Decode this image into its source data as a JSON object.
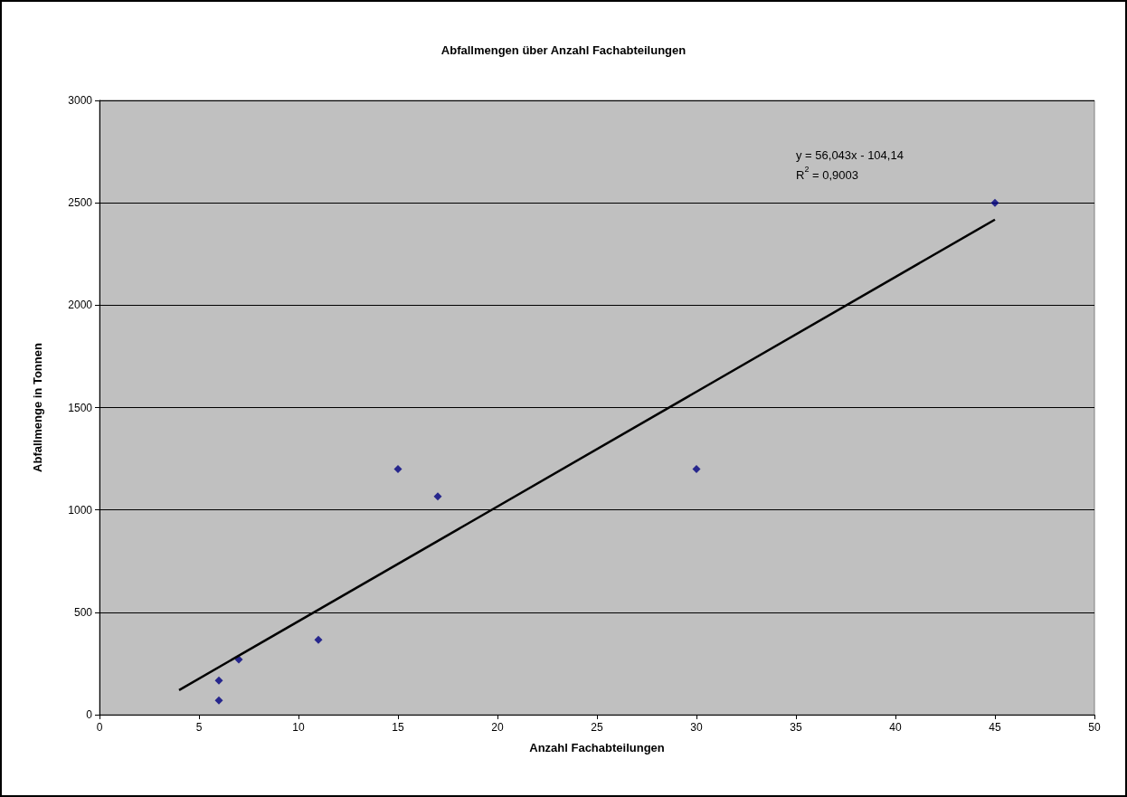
{
  "chart_data": {
    "type": "scatter",
    "title": "Abfallmengen über Anzahl Fachabteilungen",
    "xlabel": "Anzahl Fachabteilungen",
    "ylabel": "Abfallmenge in Tonnen",
    "series": [
      {
        "color": "#000080",
        "x": [
          6,
          6,
          7,
          11,
          15,
          17,
          30,
          45
        ],
        "values": [
          167,
          70,
          269,
          366,
          1200,
          1066,
          1200,
          2500
        ]
      },
      {
        "type": "line",
        "color": "#000000",
        "x": [
          4,
          45
        ],
        "values": [
          120,
          2418
        ],
        "marker": "none",
        "line_style": "solid"
      }
    ],
    "annotations": [
      "y = 56,043x - 104,14",
      "R$^{2}$ = 0,9003"
    ],
    "marker": "diamond",
    "grid": "y",
    "xlim": [
      0,
      50
    ],
    "xticks": [
      0,
      5,
      10,
      15,
      20,
      25,
      30,
      35,
      40,
      45,
      50
    ],
    "ylim": [
      0,
      3000
    ],
    "yticks": [
      0,
      500,
      1000,
      1500,
      2000,
      2500,
      3000
    ]
  }
}
